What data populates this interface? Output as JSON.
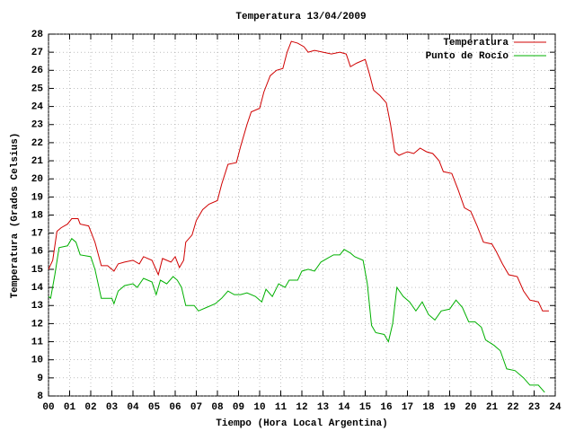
{
  "chart_data": {
    "type": "line",
    "title": "Temperatura 13/04/2009",
    "xlabel": "Tiempo (Hora Local Argentina)",
    "ylabel": "Temperatura (Grados Celsius)",
    "xlim": [
      0,
      24
    ],
    "ylim": [
      8,
      28
    ],
    "xticks": [
      {
        "value": 0,
        "label": "00"
      },
      {
        "value": 1,
        "label": "01"
      },
      {
        "value": 2,
        "label": "02"
      },
      {
        "value": 3,
        "label": "03"
      },
      {
        "value": 4,
        "label": "04"
      },
      {
        "value": 5,
        "label": "05"
      },
      {
        "value": 6,
        "label": "06"
      },
      {
        "value": 7,
        "label": "07"
      },
      {
        "value": 8,
        "label": "08"
      },
      {
        "value": 9,
        "label": "09"
      },
      10,
      11,
      12,
      13,
      14,
      15,
      16,
      17,
      18,
      19,
      20,
      21,
      22,
      23,
      24
    ],
    "yticks": [
      8,
      9,
      10,
      11,
      12,
      13,
      14,
      15,
      16,
      17,
      18,
      19,
      20,
      21,
      22,
      23,
      24,
      25,
      26,
      27,
      28
    ],
    "grid": true,
    "legend": "top-right",
    "series": [
      {
        "name": "Temperatura",
        "color": "#d00000",
        "x": [
          0.0,
          0.2,
          0.4,
          0.6,
          0.9,
          1.1,
          1.4,
          1.5,
          1.9,
          2.2,
          2.5,
          2.8,
          3.1,
          3.3,
          3.6,
          4.0,
          4.3,
          4.5,
          4.9,
          5.2,
          5.4,
          5.8,
          6.0,
          6.2,
          6.4,
          6.5,
          6.8,
          7.0,
          7.3,
          7.6,
          8.0,
          8.2,
          8.5,
          8.9,
          9.1,
          9.4,
          9.6,
          10.0,
          10.2,
          10.5,
          10.8,
          11.1,
          11.3,
          11.5,
          11.8,
          12.1,
          12.3,
          12.6,
          13.0,
          13.4,
          13.8,
          14.1,
          14.3,
          14.6,
          15.0,
          15.2,
          15.4,
          15.7,
          16.0,
          16.2,
          16.4,
          16.6,
          17.0,
          17.3,
          17.6,
          17.9,
          18.2,
          18.5,
          18.7,
          19.1,
          19.4,
          19.7,
          20.0,
          20.3,
          20.6,
          21.0,
          21.2,
          21.5,
          21.8,
          22.2,
          22.5,
          22.8,
          23.2,
          23.4,
          23.7
        ],
        "values": [
          15.0,
          15.5,
          17.1,
          17.3,
          17.5,
          17.8,
          17.8,
          17.5,
          17.4,
          16.5,
          15.2,
          15.2,
          14.9,
          15.3,
          15.4,
          15.5,
          15.3,
          15.7,
          15.5,
          14.7,
          15.6,
          15.4,
          15.7,
          15.1,
          15.5,
          16.5,
          16.9,
          17.7,
          18.3,
          18.6,
          18.8,
          19.7,
          20.8,
          20.9,
          21.8,
          23.0,
          23.7,
          23.9,
          24.8,
          25.7,
          26.0,
          26.1,
          27.0,
          27.6,
          27.5,
          27.3,
          27.0,
          27.1,
          27.0,
          26.9,
          27.0,
          26.9,
          26.2,
          26.4,
          26.6,
          25.8,
          24.9,
          24.6,
          24.2,
          23.0,
          21.5,
          21.3,
          21.5,
          21.4,
          21.7,
          21.5,
          21.4,
          21.0,
          20.4,
          20.3,
          19.4,
          18.4,
          18.2,
          17.4,
          16.5,
          16.4,
          16.0,
          15.3,
          14.7,
          14.6,
          13.8,
          13.3,
          13.2,
          12.7,
          12.7
        ]
      },
      {
        "name": "Punto de Rocío",
        "color": "#00b000",
        "x": [
          0.0,
          0.1,
          0.3,
          0.5,
          0.9,
          1.1,
          1.3,
          1.5,
          2.0,
          2.2,
          2.5,
          3.0,
          3.1,
          3.3,
          3.6,
          4.0,
          4.2,
          4.5,
          4.9,
          5.1,
          5.3,
          5.6,
          5.9,
          6.1,
          6.3,
          6.5,
          6.9,
          7.1,
          7.5,
          7.9,
          8.2,
          8.5,
          8.8,
          9.1,
          9.4,
          9.8,
          10.1,
          10.3,
          10.6,
          10.9,
          11.2,
          11.4,
          11.8,
          12.0,
          12.3,
          12.6,
          12.9,
          13.2,
          13.5,
          13.8,
          14.0,
          14.3,
          14.5,
          14.9,
          15.1,
          15.3,
          15.5,
          15.9,
          16.1,
          16.3,
          16.5,
          16.8,
          17.1,
          17.4,
          17.7,
          18.0,
          18.3,
          18.6,
          19.0,
          19.3,
          19.6,
          19.9,
          20.2,
          20.5,
          20.7,
          21.1,
          21.4,
          21.7,
          22.1,
          22.5,
          22.8,
          23.2,
          23.5
        ],
        "values": [
          13.5,
          13.4,
          14.7,
          16.2,
          16.3,
          16.7,
          16.5,
          15.8,
          15.7,
          15.0,
          13.4,
          13.4,
          13.1,
          13.8,
          14.1,
          14.2,
          14.0,
          14.5,
          14.3,
          13.6,
          14.4,
          14.2,
          14.6,
          14.4,
          14.0,
          13.0,
          13.0,
          12.7,
          12.9,
          13.1,
          13.4,
          13.8,
          13.6,
          13.6,
          13.7,
          13.5,
          13.2,
          13.9,
          13.5,
          14.2,
          14.0,
          14.4,
          14.4,
          14.9,
          15.0,
          14.9,
          15.4,
          15.6,
          15.8,
          15.8,
          16.1,
          15.9,
          15.7,
          15.5,
          14.2,
          11.9,
          11.5,
          11.4,
          11.0,
          12.0,
          14.0,
          13.5,
          13.2,
          12.7,
          13.2,
          12.5,
          12.2,
          12.7,
          12.8,
          13.3,
          12.9,
          12.1,
          12.1,
          11.8,
          11.1,
          10.8,
          10.5,
          9.5,
          9.4,
          9.0,
          8.6,
          8.6,
          8.2
        ]
      }
    ]
  }
}
